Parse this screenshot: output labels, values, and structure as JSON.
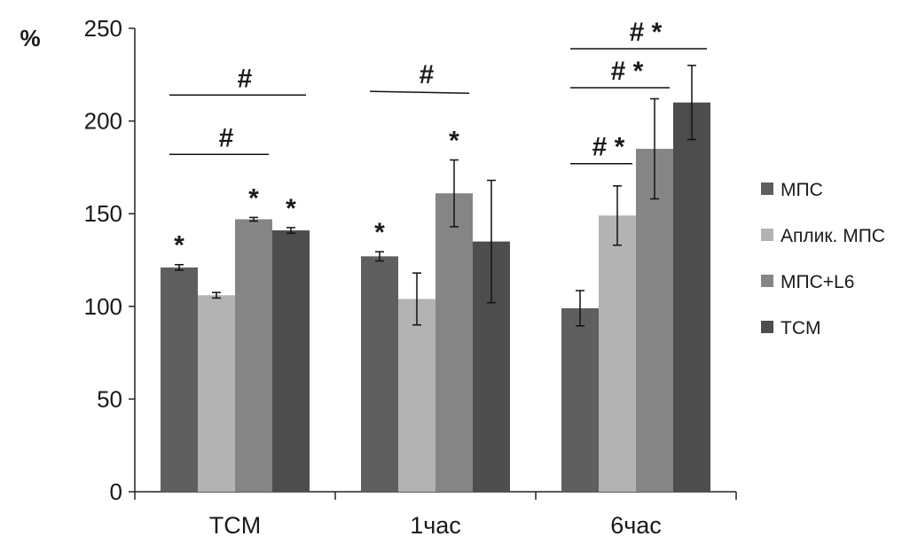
{
  "chart_data": {
    "type": "bar",
    "ylabel": "%",
    "xlabel": "",
    "title": "",
    "ylim": [
      0,
      250
    ],
    "yticks": [
      0,
      50,
      100,
      150,
      200,
      250
    ],
    "categories": [
      "TCM",
      "1час",
      "6час"
    ],
    "legend_position": "right",
    "grid": false,
    "series": [
      {
        "name": "МПС",
        "color": "#5f5f5f",
        "values": [
          121,
          127,
          99
        ],
        "errors": [
          1.5,
          2.5,
          9.5
        ]
      },
      {
        "name": "Аплик. МПС",
        "color": "#b3b3b3",
        "values": [
          106,
          104,
          149
        ],
        "errors": [
          1.5,
          14,
          16
        ]
      },
      {
        "name": "МПС+L6",
        "color": "#858585",
        "values": [
          147,
          161,
          185
        ],
        "errors": [
          1,
          18,
          27
        ]
      },
      {
        "name": "TCM",
        "color": "#4d4d4d",
        "values": [
          141,
          135,
          210
        ],
        "errors": [
          1.5,
          33,
          20
        ]
      }
    ],
    "annotations": [
      {
        "category": 0,
        "series": 0,
        "text": "*"
      },
      {
        "category": 0,
        "series": 2,
        "text": "*"
      },
      {
        "category": 0,
        "series": 3,
        "text": "*"
      },
      {
        "category": 1,
        "series": 0,
        "text": "*"
      },
      {
        "category": 1,
        "series": 2,
        "text": "*"
      }
    ],
    "brackets": [
      {
        "category": 0,
        "from_series": 0,
        "to_series": 2,
        "y": 182,
        "text": "#"
      },
      {
        "category": 0,
        "from_series": 0,
        "to_series": 3,
        "y": 214,
        "text": "#"
      },
      {
        "category": 1,
        "from_series": 0,
        "to_series": 2,
        "y": 216,
        "y_end": 215,
        "text": "#"
      },
      {
        "category": 2,
        "from_series": 0,
        "to_series": 1,
        "y": 177,
        "text": "# *"
      },
      {
        "category": 2,
        "from_series": 0,
        "to_series": 2,
        "y": 218,
        "text": "# *"
      },
      {
        "category": 2,
        "from_series": 0,
        "to_series": 3,
        "y": 239,
        "text": "# *"
      }
    ]
  }
}
